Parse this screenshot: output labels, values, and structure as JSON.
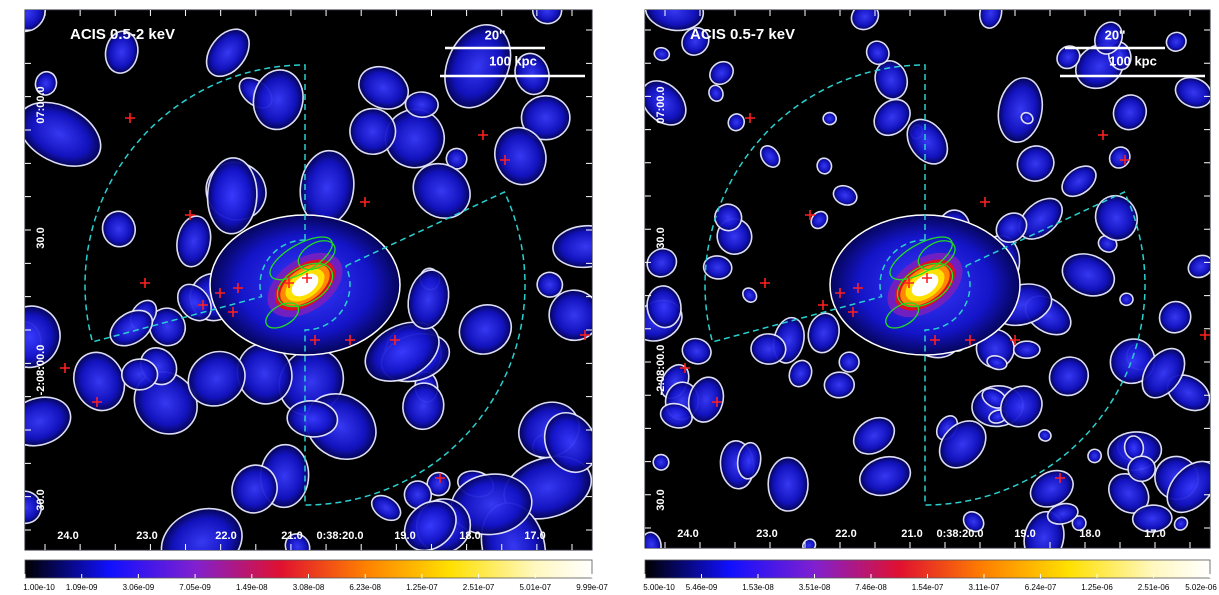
{
  "panels": [
    {
      "band_label": "ACIS 0.5-2 keV",
      "scale_bars": [
        "20''",
        "100 kpc"
      ],
      "ra_labels": [
        "24.0",
        "23.0",
        "22.0",
        "21.0",
        "0:38:20.0",
        "19.0",
        "18.0",
        "17.0"
      ],
      "dec_labels": [
        "07:00.0",
        "30.0",
        "-2:08:00.0",
        "30.0"
      ],
      "colorbar_labels": [
        "1.00e-10",
        "1.09e-09",
        "3.06e-09",
        "7.05e-09",
        "1.49e-08",
        "3.08e-08",
        "6.23e-08",
        "1.25e-07",
        "2.51e-07",
        "5.01e-07",
        "9.99e-07"
      ]
    },
    {
      "band_label": "ACIS 0.5-7 keV",
      "scale_bars": [
        "20''",
        "100 kpc"
      ],
      "ra_labels": [
        "24.0",
        "23.0",
        "22.0",
        "21.0",
        "0:38:20.0",
        "19.0",
        "18.0",
        "17.0"
      ],
      "dec_labels": [
        "07:00.0",
        "30.0",
        "-2:08:00.0",
        "30.0"
      ],
      "colorbar_labels": [
        "5.00e-10",
        "5.46e-09",
        "1.53e-08",
        "3.51e-08",
        "7.46e-08",
        "1.54e-07",
        "3.11e-07",
        "6.24e-07",
        "1.25e-06",
        "2.51e-06",
        "5.02e-06"
      ]
    }
  ]
}
